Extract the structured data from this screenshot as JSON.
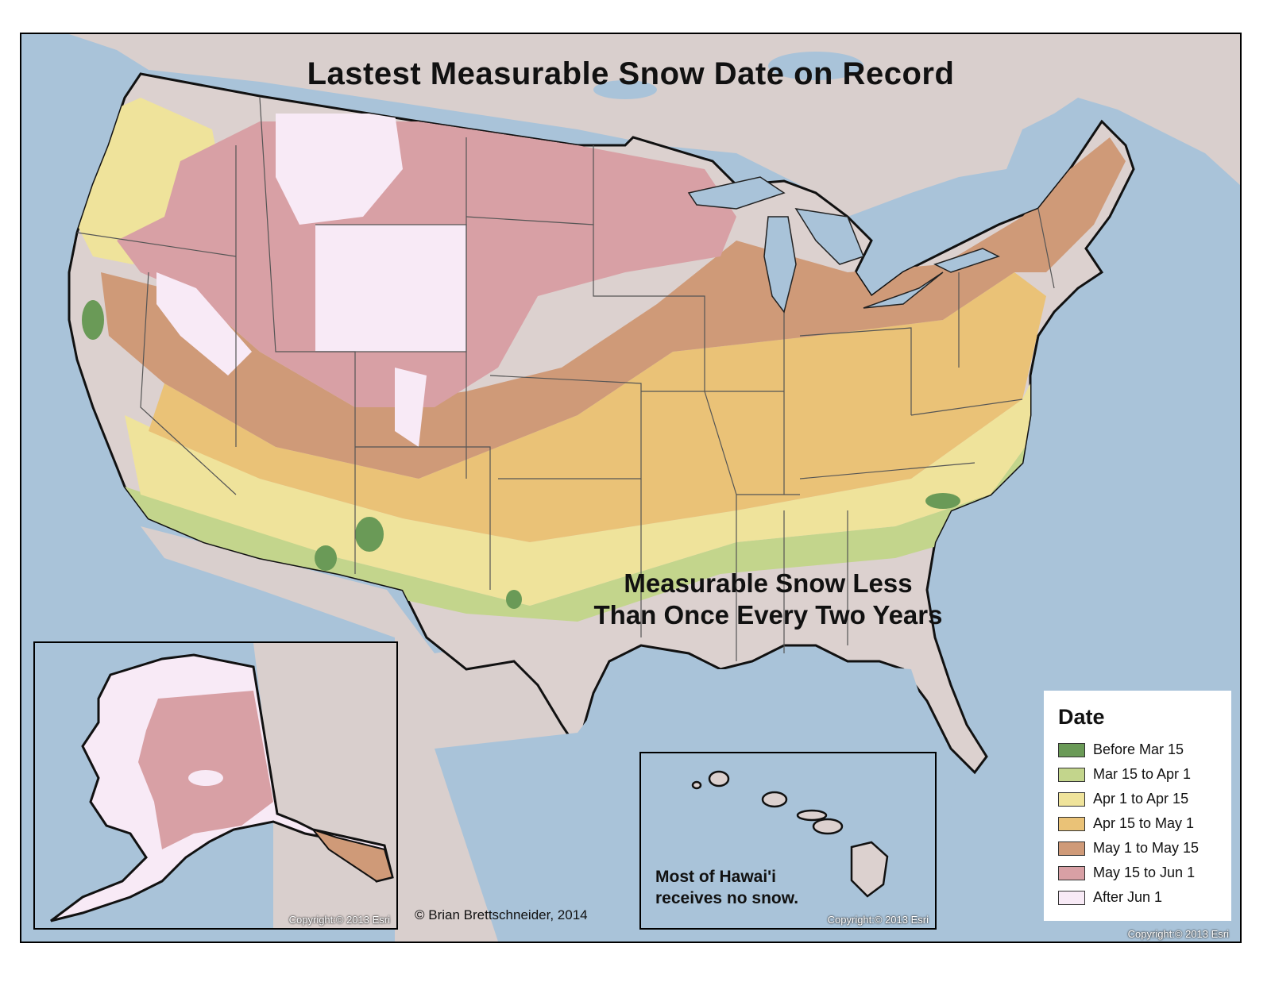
{
  "title": "Lastest Measurable Snow Date on Record",
  "no_snow_label": [
    "Measurable Snow Less",
    "Than Once Every Two Years"
  ],
  "hawaii_note": [
    "Most of Hawai'i",
    "receives no snow."
  ],
  "author_credit": "© Brian Brettschneider, 2014",
  "copyright": "Copyright:© 2013 Esri",
  "legend": {
    "title": "Date",
    "items": [
      {
        "label": "Before Mar 15",
        "color": "#6a9a57"
      },
      {
        "label": "Mar 15 to Apr 1",
        "color": "#c3d58c"
      },
      {
        "label": "Apr 1 to Apr 15",
        "color": "#efe39b"
      },
      {
        "label": "Apr 15 to May 1",
        "color": "#eac277"
      },
      {
        "label": "May 1 to May 15",
        "color": "#cf9a78"
      },
      {
        "label": "May 15 to Jun 1",
        "color": "#d8a0a5"
      },
      {
        "label": "After Jun 1",
        "color": "#f8eaf6"
      }
    ]
  },
  "colors": {
    "ocean": "#a9c3d9",
    "land": "#d9cfcd",
    "no_data": "#dcd1cf",
    "border": "#111111"
  }
}
